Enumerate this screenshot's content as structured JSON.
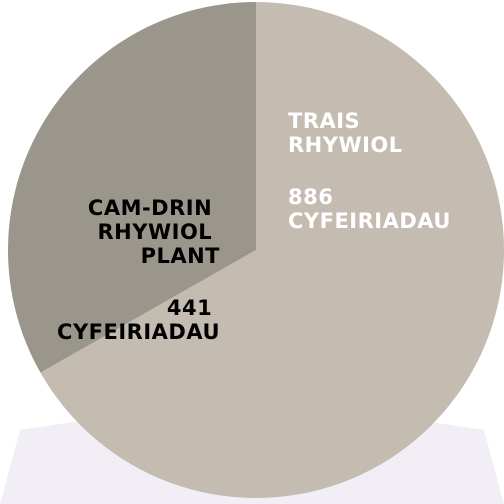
{
  "chart_data": {
    "type": "pie",
    "categories": [
      "TRAIS RHYWIOL",
      "CAM-DRIN RHYWIOL PLANT"
    ],
    "values": [
      886,
      441
    ],
    "value_labels": [
      "886 CYFEIRIADAU",
      "441 CYFEIRIADAU"
    ],
    "colors": [
      "#c4bbb1",
      "#9a968b"
    ],
    "label_colors": [
      "#ffffff",
      "#000000"
    ]
  }
}
